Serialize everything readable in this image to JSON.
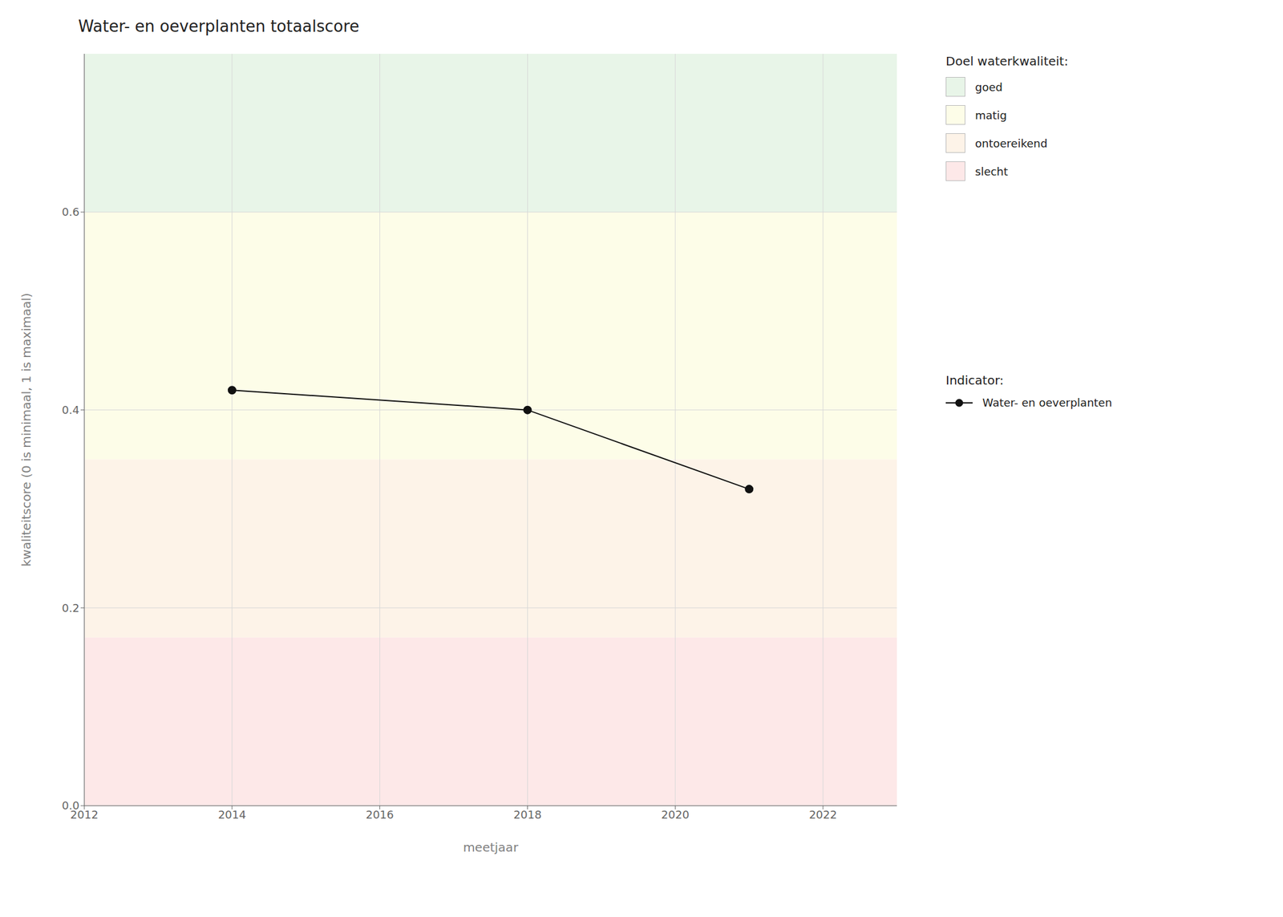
{
  "chart_data": {
    "type": "line",
    "title": "Water- en oeverplanten totaalscore",
    "xlabel": "meetjaar",
    "ylabel": "kwaliteitscore (0 is minimaal, 1 is maximaal)",
    "x": [
      2014,
      2018,
      2021
    ],
    "series": [
      {
        "name": "Water- en oeverplanten",
        "color": "#111111",
        "marker": "circle",
        "values": [
          0.42,
          0.4,
          0.32
        ]
      }
    ],
    "xlim": [
      2012,
      2023
    ],
    "ylim": [
      0.0,
      0.76
    ],
    "xticks": [
      2012,
      2014,
      2016,
      2018,
      2020,
      2022
    ],
    "yticks": [
      {
        "value": 0.0,
        "label": "0.0"
      },
      0.2,
      0.4,
      0.6
    ],
    "grid": true,
    "zones_title": "Doel waterkwaliteit:",
    "zones": [
      {
        "label": "goed",
        "ymin": 0.6,
        "ymax": 0.76,
        "color": "#e8f5e8"
      },
      {
        "label": "matig",
        "ymin": 0.35,
        "ymax": 0.6,
        "color": "#fdfde8"
      },
      {
        "label": "ontoereikend",
        "ymin": 0.17,
        "ymax": 0.35,
        "color": "#fdf3e8"
      },
      {
        "label": "slecht",
        "ymin": 0.0,
        "ymax": 0.17,
        "color": "#fde8e8"
      }
    ],
    "series_title": "Indicator:"
  }
}
